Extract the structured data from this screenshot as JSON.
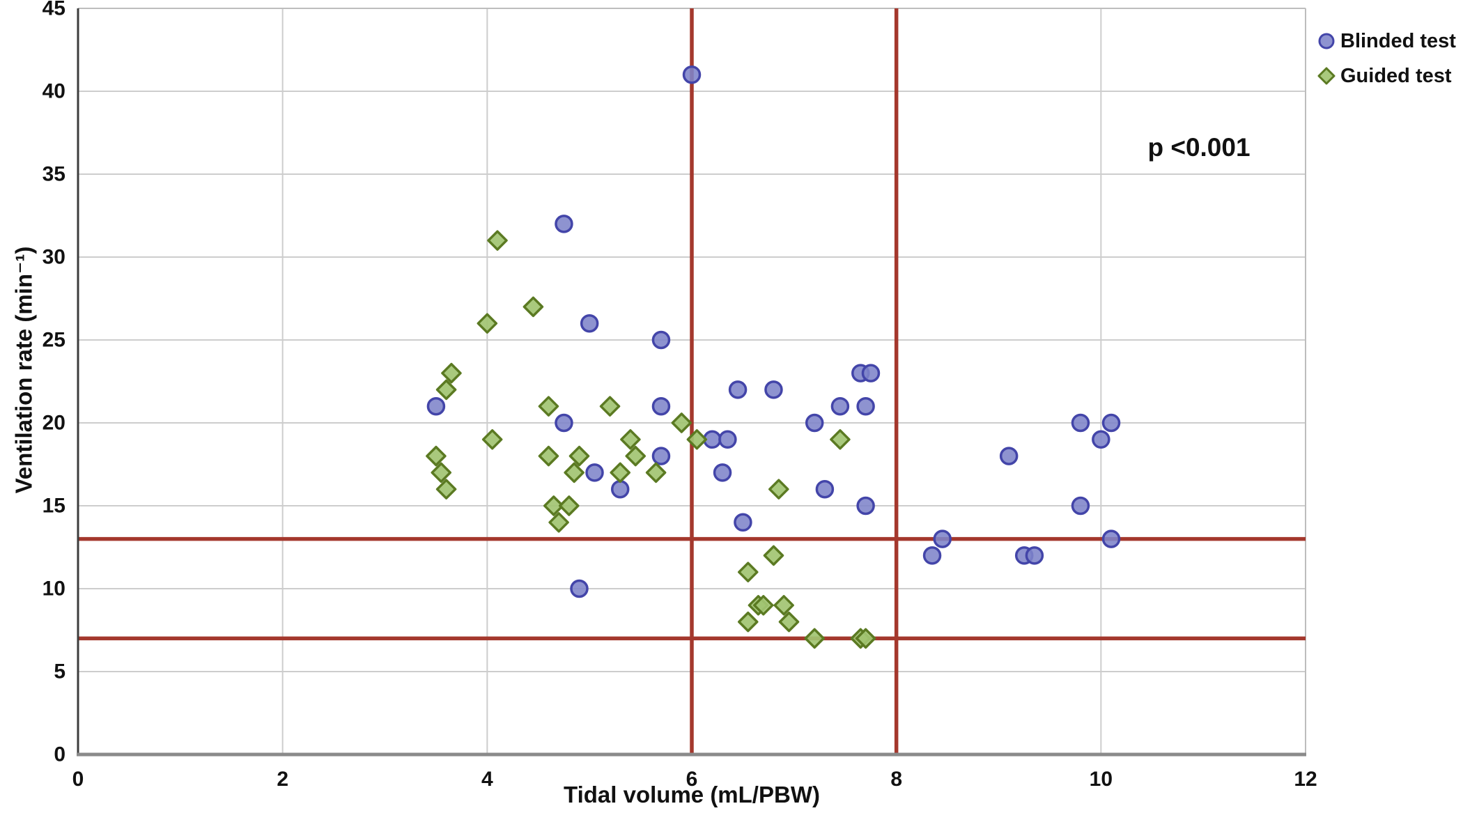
{
  "figure": {
    "p_value_label": "p <0.001"
  },
  "legend": {
    "items": [
      {
        "label": "Blinded test",
        "marker": "circle"
      },
      {
        "label": "Guided test",
        "marker": "diamond"
      }
    ],
    "position": "top-right-outside"
  },
  "chart_data": {
    "type": "scatter",
    "title": "",
    "xlabel": "Tidal volume (mL/PBW)",
    "ylabel": "Ventilation rate (min⁻¹)",
    "xlim": [
      0,
      12
    ],
    "ylim": [
      0,
      45
    ],
    "x_ticks": [
      0,
      2,
      4,
      6,
      8,
      10,
      12
    ],
    "y_ticks": [
      0,
      5,
      10,
      15,
      20,
      25,
      30,
      35,
      40,
      45
    ],
    "grid": true,
    "legend_position": "top-right",
    "annotations": [
      {
        "text": "p <0.001",
        "x": 10.95,
        "y": 36.5
      }
    ],
    "reference_lines": {
      "vertical_x": [
        6,
        8
      ],
      "horizontal_y": [
        7,
        13
      ],
      "color": "#A4382D",
      "width": 5.5
    },
    "series": [
      {
        "name": "Blinded test",
        "marker": "circle",
        "fill": "#7E84C9",
        "stroke": "#4345A9",
        "points": [
          [
            3.5,
            21
          ],
          [
            4.75,
            32
          ],
          [
            4.75,
            20
          ],
          [
            4.9,
            10
          ],
          [
            5.0,
            26
          ],
          [
            5.05,
            17
          ],
          [
            5.3,
            16
          ],
          [
            5.7,
            25
          ],
          [
            5.7,
            21
          ],
          [
            5.7,
            18
          ],
          [
            6.0,
            41
          ],
          [
            6.2,
            19
          ],
          [
            6.35,
            19
          ],
          [
            6.3,
            17
          ],
          [
            6.45,
            22
          ],
          [
            6.5,
            14
          ],
          [
            6.8,
            22
          ],
          [
            7.2,
            20
          ],
          [
            7.3,
            16
          ],
          [
            7.45,
            21
          ],
          [
            7.65,
            23
          ],
          [
            7.75,
            23
          ],
          [
            7.7,
            21
          ],
          [
            7.7,
            15
          ],
          [
            8.35,
            12
          ],
          [
            8.45,
            13
          ],
          [
            9.1,
            18
          ],
          [
            9.25,
            12
          ],
          [
            9.35,
            12
          ],
          [
            9.8,
            20
          ],
          [
            9.8,
            15
          ],
          [
            10.0,
            19
          ],
          [
            10.1,
            20
          ],
          [
            10.1,
            13
          ]
        ]
      },
      {
        "name": "Guided test",
        "marker": "diamond",
        "fill": "#A2C472",
        "stroke": "#5B7A22",
        "points": [
          [
            3.5,
            18
          ],
          [
            3.55,
            17
          ],
          [
            3.6,
            22
          ],
          [
            3.6,
            16
          ],
          [
            3.65,
            23
          ],
          [
            4.0,
            26
          ],
          [
            4.05,
            19
          ],
          [
            4.1,
            31
          ],
          [
            4.45,
            27
          ],
          [
            4.6,
            21
          ],
          [
            4.6,
            18
          ],
          [
            4.65,
            15
          ],
          [
            4.7,
            14
          ],
          [
            4.8,
            15
          ],
          [
            4.85,
            17
          ],
          [
            4.9,
            18
          ],
          [
            5.2,
            21
          ],
          [
            5.3,
            17
          ],
          [
            5.4,
            19
          ],
          [
            5.45,
            18
          ],
          [
            5.65,
            17
          ],
          [
            5.9,
            20
          ],
          [
            6.05,
            19
          ],
          [
            6.55,
            11
          ],
          [
            6.55,
            8
          ],
          [
            6.65,
            9
          ],
          [
            6.7,
            9
          ],
          [
            6.8,
            12
          ],
          [
            6.85,
            16
          ],
          [
            6.9,
            9
          ],
          [
            6.95,
            8
          ],
          [
            7.2,
            7
          ],
          [
            7.45,
            19
          ],
          [
            7.65,
            7
          ],
          [
            7.7,
            7
          ]
        ]
      }
    ],
    "colors": {
      "grid": "#CDCDCD",
      "frame": "#BDBDBD",
      "axis_left": "#3D3D3D",
      "axis_bottom": "#8A8A8A",
      "text": "#111111",
      "background": "#FFFFFF"
    }
  }
}
